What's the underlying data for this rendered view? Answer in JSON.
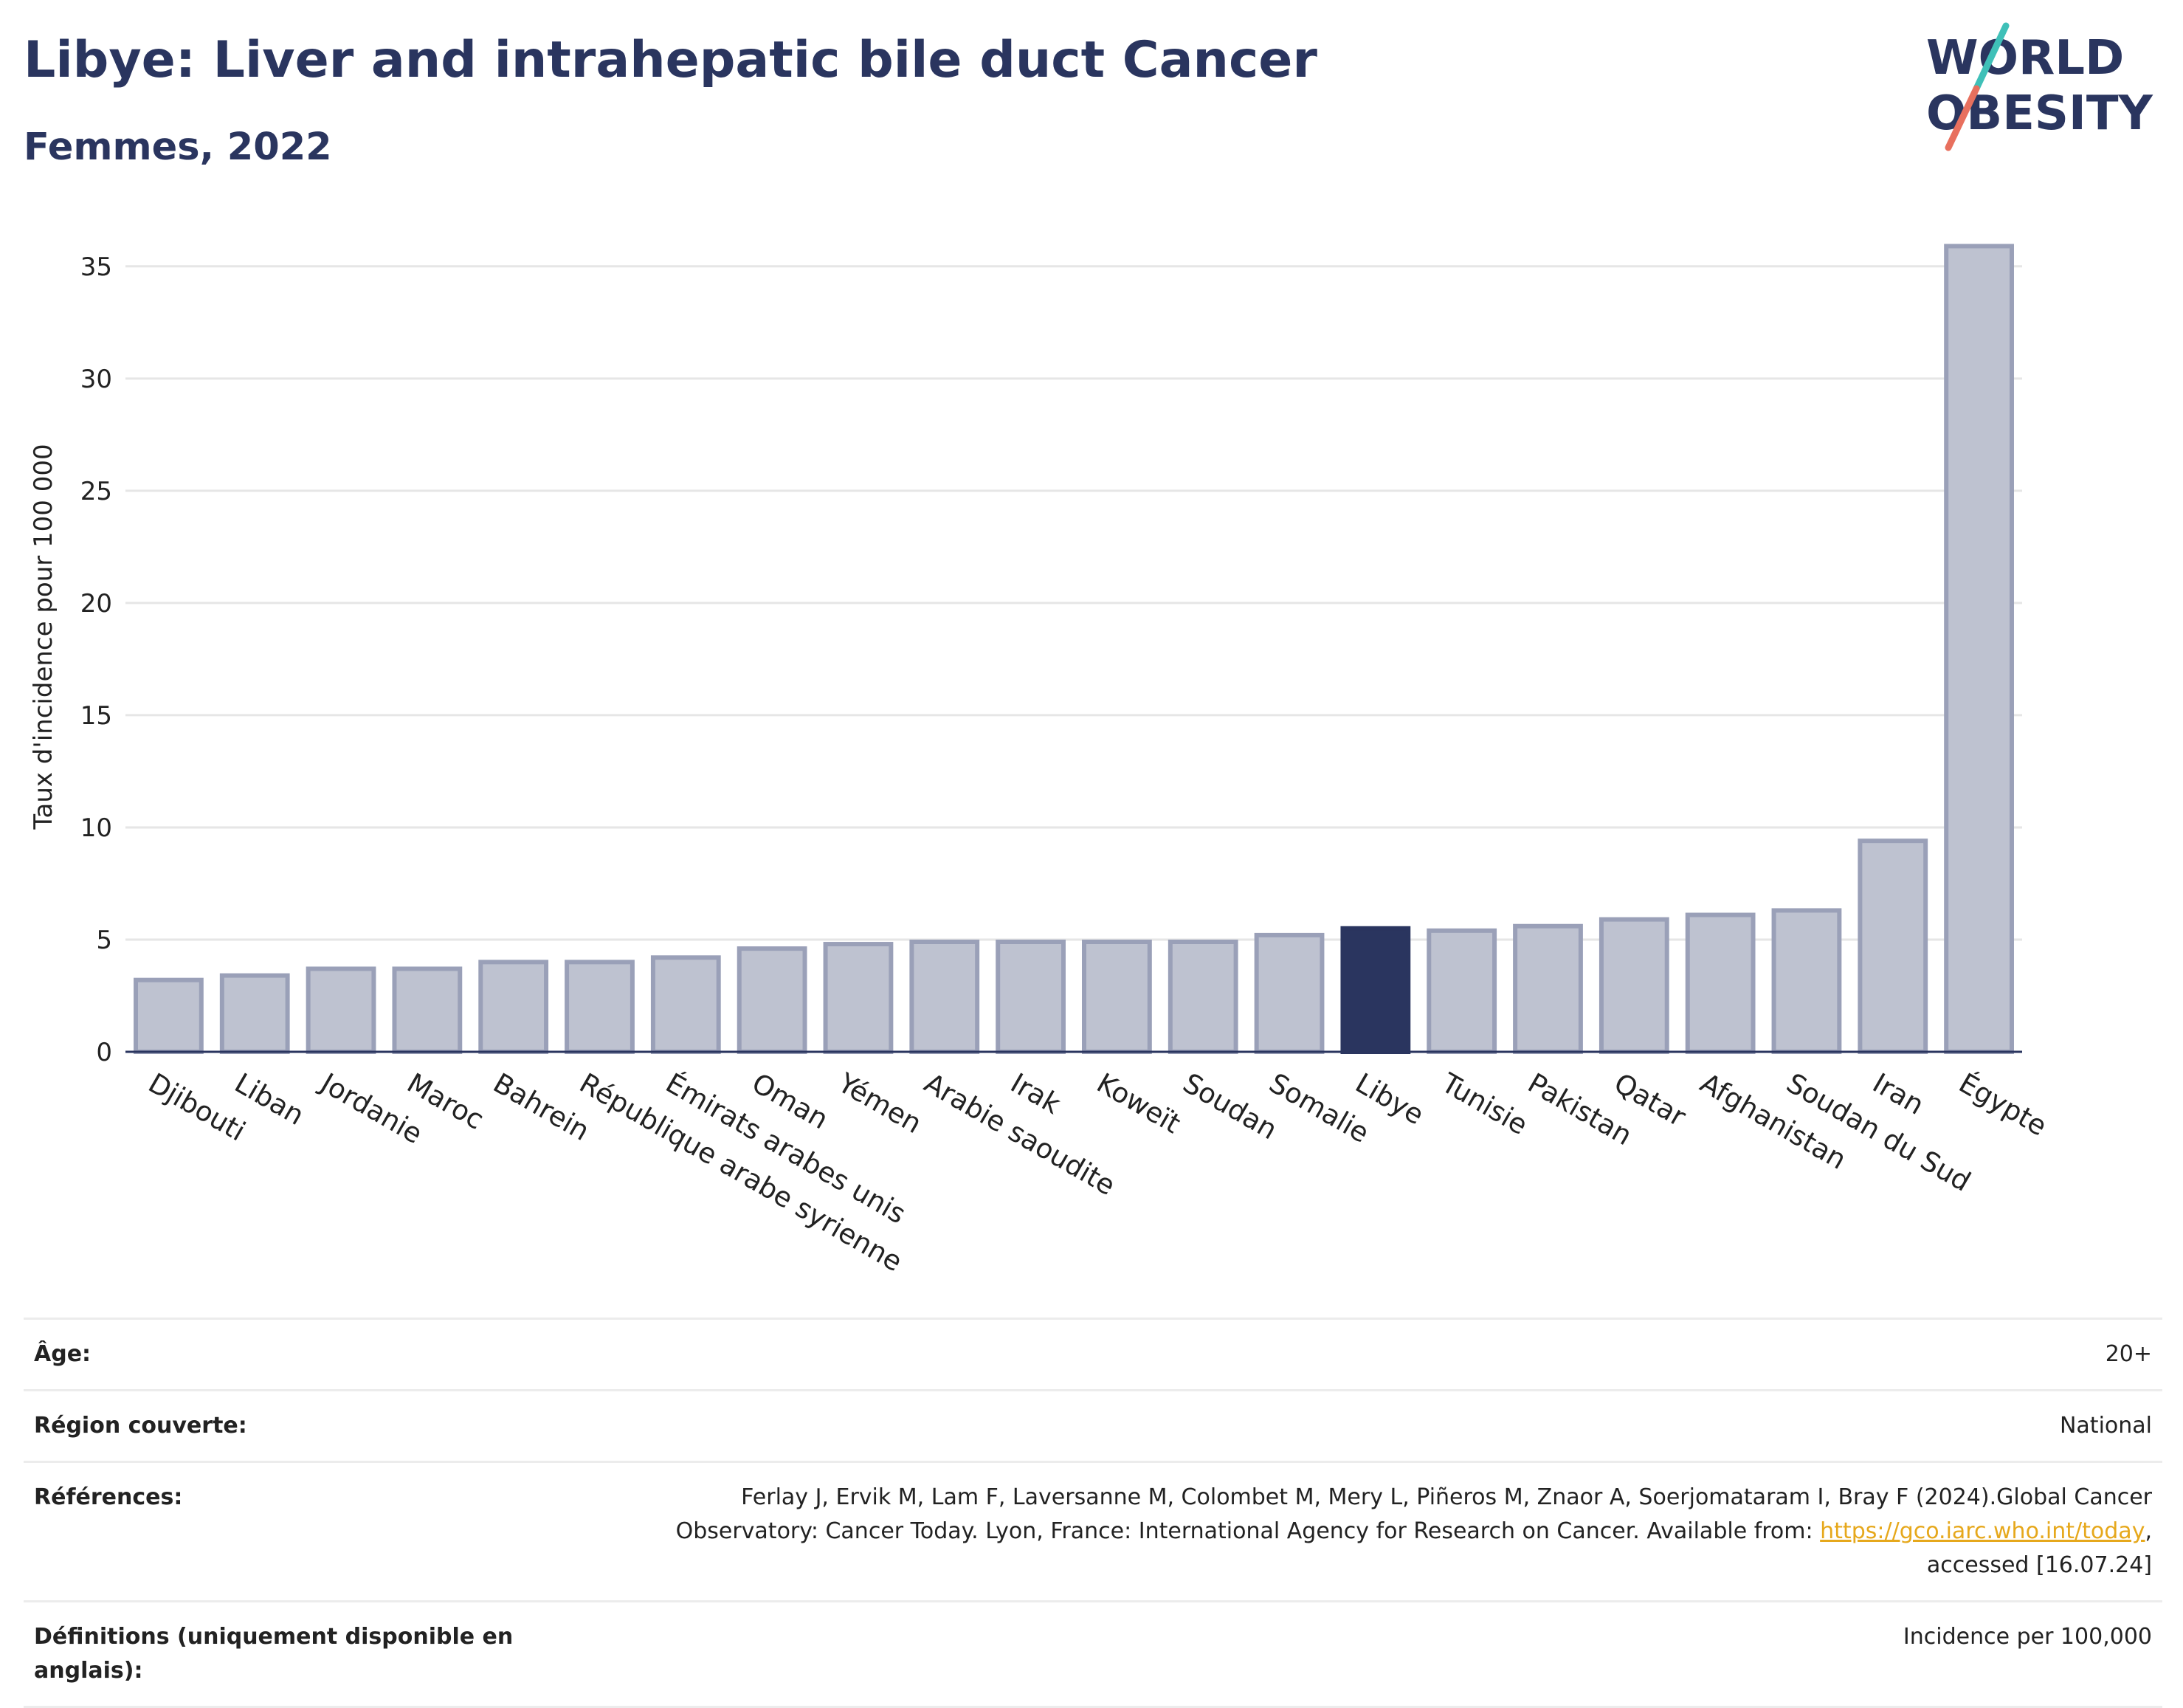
{
  "header": {
    "title": "Libye: Liver and intrahepatic bile duct Cancer",
    "subtitle": "Femmes, 2022"
  },
  "logo": {
    "line1": "WORLD",
    "line2": "OBESITY"
  },
  "chart_data": {
    "type": "bar",
    "title": "Libye: Liver and intrahepatic bile duct Cancer",
    "subtitle": "Femmes, 2022",
    "xlabel": "",
    "ylabel": "Taux d'incidence pour 100 000",
    "ylim": [
      0,
      37
    ],
    "yticks": [
      0,
      5,
      10,
      15,
      20,
      25,
      30,
      35
    ],
    "grid": true,
    "highlight": "Libye",
    "colors": {
      "bar": "#bec2d0",
      "bar_edge": "#9aa0b8",
      "highlight": "#2a355f"
    },
    "categories": [
      "Djibouti",
      "Liban",
      "Jordanie",
      "Maroc",
      "Bahrein",
      "République arabe syrienne",
      "Émirats arabes unis",
      "Oman",
      "Yémen",
      "Arabie saoudite",
      "Irak",
      "Koweït",
      "Soudan",
      "Somalie",
      "Libye",
      "Tunisie",
      "Pakistan",
      "Qatar",
      "Afghanistan",
      "Soudan du Sud",
      "Iran",
      "Égypte"
    ],
    "values": [
      3.2,
      3.4,
      3.7,
      3.7,
      4.0,
      4.0,
      4.2,
      4.6,
      4.8,
      4.9,
      4.9,
      4.9,
      4.9,
      5.2,
      5.5,
      5.4,
      5.6,
      5.9,
      6.1,
      6.3,
      9.4,
      35.9
    ]
  },
  "meta": {
    "age_label": "Âge:",
    "age_value": "20+",
    "region_label": "Région couverte:",
    "region_value": "National",
    "refs_label": "Références:",
    "refs_text_1": "Ferlay J, Ervik M, Lam F, Laversanne M, Colombet M, Mery L, Piñeros M, Znaor A, Soerjomataram I, Bray F (2024).Global Cancer",
    "refs_text_2": "Observatory: Cancer Today. Lyon, France: International Agency for Research on Cancer. Available from: ",
    "refs_link": "https://gco.iarc.who.int/today",
    "refs_text_3": ",",
    "refs_text_4": "accessed [16.07.24]",
    "defs_label": "Définitions (uniquement disponible en anglais):",
    "defs_value": "Incidence per 100,000"
  }
}
